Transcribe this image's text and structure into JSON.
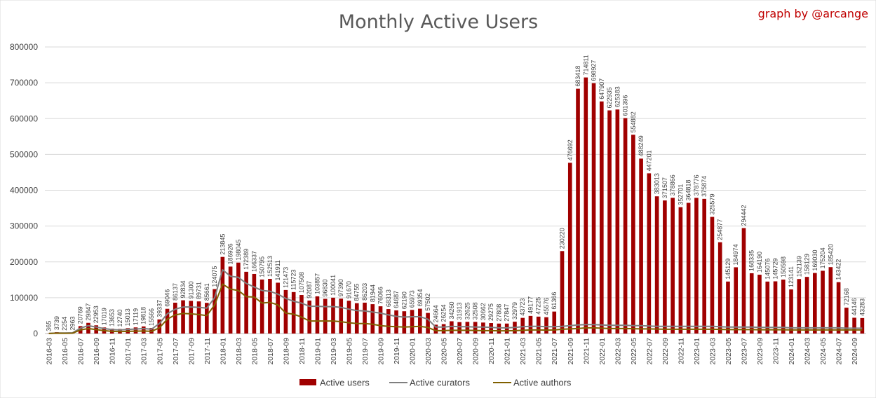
{
  "chart_data": {
    "type": "bar",
    "title": "Monthly Active Users",
    "credit": "graph by @arcange",
    "ylim": [
      0,
      800000
    ],
    "yticks": [
      0,
      100000,
      200000,
      300000,
      400000,
      500000,
      600000,
      700000,
      800000
    ],
    "grid": true,
    "legend_position": "bottom",
    "categories": [
      "2016-03",
      "2016-04",
      "2016-05",
      "2016-06",
      "2016-07",
      "2016-08",
      "2016-09",
      "2016-10",
      "2016-11",
      "2016-12",
      "2017-01",
      "2017-02",
      "2017-03",
      "2017-04",
      "2017-05",
      "2017-06",
      "2017-07",
      "2017-08",
      "2017-09",
      "2017-10",
      "2017-11",
      "2017-12",
      "2018-01",
      "2018-02",
      "2018-03",
      "2018-04",
      "2018-05",
      "2018-06",
      "2018-07",
      "2018-08",
      "2018-09",
      "2018-10",
      "2018-11",
      "2018-12",
      "2019-01",
      "2019-02",
      "2019-03",
      "2019-04",
      "2019-05",
      "2019-06",
      "2019-07",
      "2019-08",
      "2019-09",
      "2019-10",
      "2019-11",
      "2019-12",
      "2020-01",
      "2020-02",
      "2020-03",
      "2020-04",
      "2020-05",
      "2020-06",
      "2020-07",
      "2020-08",
      "2020-09",
      "2020-10",
      "2020-11",
      "2020-12",
      "2021-01",
      "2021-02",
      "2021-03",
      "2021-04",
      "2021-05",
      "2021-06",
      "2021-07",
      "2021-08",
      "2021-09",
      "2021-10",
      "2021-11",
      "2021-12",
      "2022-01",
      "2022-02",
      "2022-03",
      "2022-04",
      "2022-05",
      "2022-06",
      "2022-07",
      "2022-08",
      "2022-09",
      "2022-10",
      "2022-11",
      "2022-12",
      "2023-01",
      "2023-02",
      "2023-03",
      "2023-04",
      "2023-05",
      "2023-06",
      "2023-07",
      "2023-08",
      "2023-09",
      "2023-10",
      "2023-11",
      "2023-12",
      "2024-01",
      "2024-02",
      "2024-03",
      "2024-04",
      "2024-05",
      "2024-06",
      "2024-07",
      "2024-08",
      "2024-09",
      "2024-10"
    ],
    "xtick_labels": [
      "2016-03",
      "2016-05",
      "2016-07",
      "2016-09",
      "2016-11",
      "2017-01",
      "2017-03",
      "2017-05",
      "2017-07",
      "2017-09",
      "2017-11",
      "2018-01",
      "2018-03",
      "2018-05",
      "2018-07",
      "2018-09",
      "2018-11",
      "2019-01",
      "2019-03",
      "2019-05",
      "2019-07",
      "2019-09",
      "2019-11",
      "2020-01",
      "2020-03",
      "2020-05",
      "2020-07",
      "2020-09",
      "2020-11",
      "2021-01",
      "2021-03",
      "2021-05",
      "2021-07",
      "2021-09",
      "2021-11",
      "2022-01",
      "2022-03",
      "2022-05",
      "2022-07",
      "2022-09",
      "2022-11",
      "2023-01",
      "2023-03",
      "2023-05",
      "2023-07",
      "2023-09",
      "2023-11",
      "2024-01",
      "2024-03",
      "2024-05",
      "2024-07",
      "2024-09"
    ],
    "series": [
      {
        "name": "Active users",
        "type": "bar",
        "color": "#a00000",
        "values": [
          365,
          3739,
          2254,
          2963,
          20769,
          29847,
          22953,
          17019,
          13653,
          12740,
          15013,
          17119,
          19818,
          15566,
          39337,
          69046,
          86137,
          92834,
          91300,
          89731,
          85661,
          124075,
          213845,
          186926,
          198045,
          172389,
          166337,
          150795,
          152513,
          141911,
          121473,
          115723,
          107508,
          92087,
          103857,
          96830,
          100041,
          97390,
          91670,
          84755,
          86203,
          81944,
          76066,
          68313,
          64687,
          62190,
          65973,
          69354,
          57502,
          24664,
          26254,
          34260,
          31913,
          32625,
          32508,
          30662,
          29275,
          27808,
          27847,
          32979,
          43723,
          49177,
          47225,
          45576,
          61366,
          230220,
          476692,
          683418,
          714811,
          698927,
          647907,
          622935,
          625383,
          601396,
          554882,
          488249,
          447201,
          383013,
          371507,
          378866,
          352701,
          364818,
          378776,
          375874,
          325579,
          254877,
          145129,
          184974,
          294442,
          168335,
          164190,
          145076,
          145729,
          150598,
          123141,
          152139,
          158129,
          169030,
          175204,
          185420,
          143422,
          72168,
          44146,
          43283
        ]
      },
      {
        "name": "Active curators",
        "type": "line",
        "color": "#7f7f7f",
        "values": [
          200,
          1500,
          1500,
          2000,
          15000,
          22000,
          18000,
          14000,
          11000,
          10000,
          11500,
          12500,
          14000,
          12000,
          28000,
          55000,
          68000,
          74000,
          74000,
          73000,
          71000,
          100000,
          178000,
          160000,
          157000,
          140000,
          130000,
          120000,
          118000,
          110000,
          98000,
          90000,
          85000,
          76000,
          76000,
          75000,
          75000,
          73000,
          68000,
          64000,
          63000,
          60000,
          57000,
          52000,
          48000,
          46000,
          47000,
          47000,
          40000,
          18000,
          18000,
          20000,
          19000,
          19000,
          18000,
          18000,
          17000,
          16000,
          16000,
          17000,
          19000,
          20000,
          20000,
          19000,
          19000,
          20000,
          22000,
          24000,
          25000,
          25000,
          24000,
          23000,
          23000,
          23000,
          22000,
          22000,
          21000,
          20000,
          20000,
          20000,
          20000,
          20000,
          20000,
          20000,
          20000,
          19000,
          18000,
          18000,
          18000,
          18000,
          17000,
          17000,
          17000,
          17000,
          16000,
          16000,
          16000,
          16000,
          16000,
          16000,
          16000,
          15000,
          15000,
          15000
        ]
      },
      {
        "name": "Active authors",
        "type": "line",
        "color": "#806000",
        "values": [
          150,
          1000,
          800,
          1000,
          10000,
          14000,
          11000,
          8000,
          6000,
          5500,
          6000,
          6500,
          7000,
          6000,
          16000,
          40000,
          52000,
          56000,
          55000,
          53000,
          50000,
          80000,
          138000,
          124000,
          120000,
          103000,
          102000,
          85000,
          87000,
          80000,
          57000,
          54000,
          46000,
          35000,
          35000,
          35000,
          35000,
          33000,
          30000,
          28000,
          28000,
          26000,
          22000,
          20000,
          19000,
          18000,
          19000,
          20000,
          17000,
          8000,
          8000,
          9000,
          9000,
          9000,
          8500,
          8000,
          8000,
          7500,
          7500,
          8000,
          9000,
          10000,
          10000,
          9500,
          10000,
          12000,
          13000,
          14000,
          16000,
          16000,
          15000,
          14000,
          14000,
          14000,
          13500,
          13000,
          13000,
          12500,
          12000,
          12000,
          12000,
          12000,
          12000,
          12000,
          12000,
          11500,
          11000,
          11000,
          11000,
          11000,
          10500,
          10500,
          10500,
          10500,
          10000,
          10000,
          10000,
          10000,
          10000,
          10000,
          10000,
          10000,
          10000,
          10000
        ]
      }
    ]
  }
}
